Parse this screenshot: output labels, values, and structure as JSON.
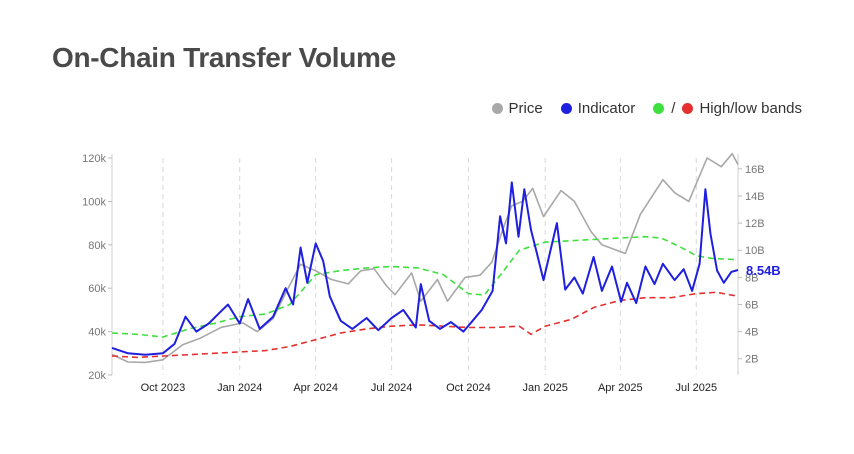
{
  "title": "On-Chain Transfer Volume",
  "legend": {
    "price": "Price",
    "indicator": "Indicator",
    "bands_separator": "/",
    "bands": "High/low bands"
  },
  "colors": {
    "price": "#a8a8a8",
    "indicator": "#1f1fe0",
    "high_band": "#3ee03e",
    "low_band": "#e53030",
    "grid": "#d8d8d8",
    "axis_text": "#777777"
  },
  "chart_data": {
    "type": "line",
    "title": "On-Chain Transfer Volume",
    "x_range": [
      "2023-08-01",
      "2025-08-20"
    ],
    "x_ticks": [
      {
        "date": "2023-10-01",
        "label": "Oct 2023"
      },
      {
        "date": "2024-01-01",
        "label": "Jan 2024"
      },
      {
        "date": "2024-04-01",
        "label": "Apr 2024"
      },
      {
        "date": "2024-07-01",
        "label": "Jul 2024"
      },
      {
        "date": "2024-10-01",
        "label": "Oct 2024"
      },
      {
        "date": "2025-01-01",
        "label": "Jan 2025"
      },
      {
        "date": "2025-04-01",
        "label": "Apr 2025"
      },
      {
        "date": "2025-07-01",
        "label": "Jul 2025"
      }
    ],
    "y_left": {
      "min": 20000,
      "max": 120000,
      "ticks": [
        {
          "value": 20000,
          "label": "20k"
        },
        {
          "value": 40000,
          "label": "40k"
        },
        {
          "value": 60000,
          "label": "60k"
        },
        {
          "value": 80000,
          "label": "80k"
        },
        {
          "value": 100000,
          "label": "100k"
        },
        {
          "value": 120000,
          "label": "120k"
        }
      ]
    },
    "y_right": {
      "min": 0.8,
      "max": 16.8,
      "ticks": [
        {
          "value": 2,
          "label": "2B"
        },
        {
          "value": 4,
          "label": "4B"
        },
        {
          "value": 6,
          "label": "6B"
        },
        {
          "value": 8,
          "label": "8B"
        },
        {
          "value": 10,
          "label": "10B"
        },
        {
          "value": 12,
          "label": "12B"
        },
        {
          "value": 14,
          "label": "14B"
        },
        {
          "value": 16,
          "label": "16B"
        }
      ]
    },
    "current_value_label": "8.54B",
    "grid": {
      "x": true,
      "y": false,
      "style": "dashed"
    },
    "legend_position": "top-right",
    "series": [
      {
        "name": "Price",
        "axis": "left",
        "points": [
          [
            "2023-08-01",
            29500
          ],
          [
            "2023-08-20",
            26000
          ],
          [
            "2023-09-10",
            25800
          ],
          [
            "2023-10-01",
            27000
          ],
          [
            "2023-10-25",
            34000
          ],
          [
            "2023-11-15",
            37000
          ],
          [
            "2023-12-10",
            42000
          ],
          [
            "2024-01-05",
            44000
          ],
          [
            "2024-01-22",
            40000
          ],
          [
            "2024-02-10",
            46000
          ],
          [
            "2024-02-28",
            60000
          ],
          [
            "2024-03-14",
            71000
          ],
          [
            "2024-04-01",
            68000
          ],
          [
            "2024-04-20",
            64000
          ],
          [
            "2024-05-10",
            62000
          ],
          [
            "2024-05-25",
            68000
          ],
          [
            "2024-06-10",
            69000
          ],
          [
            "2024-06-25",
            61000
          ],
          [
            "2024-07-05",
            57000
          ],
          [
            "2024-07-25",
            67000
          ],
          [
            "2024-08-05",
            54000
          ],
          [
            "2024-08-25",
            64000
          ],
          [
            "2024-09-06",
            54000
          ],
          [
            "2024-09-27",
            65000
          ],
          [
            "2024-10-15",
            66000
          ],
          [
            "2024-10-29",
            72000
          ],
          [
            "2024-11-12",
            88000
          ],
          [
            "2024-11-22",
            98000
          ],
          [
            "2024-12-05",
            100000
          ],
          [
            "2024-12-17",
            106000
          ],
          [
            "2024-12-30",
            93000
          ],
          [
            "2025-01-20",
            105000
          ],
          [
            "2025-02-05",
            100000
          ],
          [
            "2025-02-25",
            86000
          ],
          [
            "2025-03-10",
            80000
          ],
          [
            "2025-04-07",
            76000
          ],
          [
            "2025-04-25",
            94000
          ],
          [
            "2025-05-22",
            110000
          ],
          [
            "2025-06-05",
            104000
          ],
          [
            "2025-06-22",
            100000
          ],
          [
            "2025-07-14",
            120000
          ],
          [
            "2025-07-31",
            116000
          ],
          [
            "2025-08-13",
            122000
          ],
          [
            "2025-08-20",
            117000
          ]
        ]
      },
      {
        "name": "Indicator",
        "axis": "right",
        "points": [
          [
            "2023-08-01",
            2.8
          ],
          [
            "2023-08-20",
            2.4
          ],
          [
            "2023-09-10",
            2.3
          ],
          [
            "2023-10-01",
            2.4
          ],
          [
            "2023-10-15",
            3.1
          ],
          [
            "2023-10-28",
            5.1
          ],
          [
            "2023-11-10",
            4.0
          ],
          [
            "2023-11-25",
            4.6
          ],
          [
            "2023-12-08",
            5.4
          ],
          [
            "2023-12-18",
            6.0
          ],
          [
            "2024-01-01",
            4.6
          ],
          [
            "2024-01-11",
            6.4
          ],
          [
            "2024-01-25",
            4.2
          ],
          [
            "2024-02-10",
            5.1
          ],
          [
            "2024-02-25",
            7.2
          ],
          [
            "2024-03-05",
            6.0
          ],
          [
            "2024-03-14",
            10.2
          ],
          [
            "2024-03-22",
            7.6
          ],
          [
            "2024-04-01",
            10.5
          ],
          [
            "2024-04-10",
            9.2
          ],
          [
            "2024-04-18",
            6.6
          ],
          [
            "2024-05-01",
            4.8
          ],
          [
            "2024-05-15",
            4.2
          ],
          [
            "2024-06-01",
            5.0
          ],
          [
            "2024-06-15",
            4.1
          ],
          [
            "2024-07-01",
            5.0
          ],
          [
            "2024-07-15",
            5.6
          ],
          [
            "2024-07-30",
            4.3
          ],
          [
            "2024-08-05",
            7.5
          ],
          [
            "2024-08-15",
            4.8
          ],
          [
            "2024-08-28",
            4.2
          ],
          [
            "2024-09-10",
            4.7
          ],
          [
            "2024-09-25",
            4.0
          ],
          [
            "2024-10-06",
            4.8
          ],
          [
            "2024-10-17",
            5.6
          ],
          [
            "2024-10-30",
            7.0
          ],
          [
            "2024-11-08",
            12.5
          ],
          [
            "2024-11-15",
            10.5
          ],
          [
            "2024-11-22",
            15.0
          ],
          [
            "2024-11-30",
            11.0
          ],
          [
            "2024-12-07",
            14.5
          ],
          [
            "2024-12-15",
            11.5
          ],
          [
            "2024-12-22",
            9.8
          ],
          [
            "2024-12-30",
            7.8
          ],
          [
            "2025-01-15",
            12.0
          ],
          [
            "2025-01-25",
            7.1
          ],
          [
            "2025-02-05",
            8.0
          ],
          [
            "2025-02-15",
            6.8
          ],
          [
            "2025-02-28",
            9.5
          ],
          [
            "2025-03-10",
            7.0
          ],
          [
            "2025-03-22",
            8.8
          ],
          [
            "2025-04-02",
            6.2
          ],
          [
            "2025-04-09",
            7.6
          ],
          [
            "2025-04-20",
            6.1
          ],
          [
            "2025-05-01",
            8.8
          ],
          [
            "2025-05-12",
            7.5
          ],
          [
            "2025-05-22",
            9.0
          ],
          [
            "2025-06-05",
            7.8
          ],
          [
            "2025-06-16",
            8.6
          ],
          [
            "2025-06-26",
            7.0
          ],
          [
            "2025-07-05",
            9.0
          ],
          [
            "2025-07-12",
            14.5
          ],
          [
            "2025-07-18",
            11.2
          ],
          [
            "2025-07-26",
            8.5
          ],
          [
            "2025-08-03",
            7.6
          ],
          [
            "2025-08-12",
            8.4
          ],
          [
            "2025-08-20",
            8.54
          ]
        ]
      },
      {
        "name": "High/low bands",
        "axis": "right",
        "points": [
          [
            "2023-08-01",
            3.9
          ],
          [
            "2023-09-01",
            3.8
          ],
          [
            "2023-10-01",
            3.6
          ],
          [
            "2023-11-01",
            4.2
          ],
          [
            "2023-12-01",
            4.6
          ],
          [
            "2024-01-01",
            5.1
          ],
          [
            "2024-02-01",
            5.3
          ],
          [
            "2024-03-01",
            6.0
          ],
          [
            "2024-04-01",
            8.2
          ],
          [
            "2024-05-01",
            8.5
          ],
          [
            "2024-06-01",
            8.7
          ],
          [
            "2024-07-01",
            8.8
          ],
          [
            "2024-08-01",
            8.7
          ],
          [
            "2024-09-01",
            8.2
          ],
          [
            "2024-10-01",
            6.8
          ],
          [
            "2024-10-20",
            6.7
          ],
          [
            "2024-11-10",
            8.3
          ],
          [
            "2024-12-01",
            10.0
          ],
          [
            "2025-01-01",
            10.6
          ],
          [
            "2025-02-01",
            10.7
          ],
          [
            "2025-03-01",
            10.8
          ],
          [
            "2025-04-01",
            10.9
          ],
          [
            "2025-05-01",
            11.0
          ],
          [
            "2025-05-20",
            10.9
          ],
          [
            "2025-06-10",
            10.3
          ],
          [
            "2025-07-01",
            9.6
          ],
          [
            "2025-07-20",
            9.4
          ],
          [
            "2025-08-20",
            9.3
          ]
        ]
      },
      {
        "name": "High/low bands",
        "axis": "right",
        "points": [
          [
            "2023-08-01",
            2.2
          ],
          [
            "2023-09-01",
            2.1
          ],
          [
            "2023-10-01",
            2.2
          ],
          [
            "2023-11-01",
            2.3
          ],
          [
            "2023-12-01",
            2.4
          ],
          [
            "2024-01-01",
            2.5
          ],
          [
            "2024-02-01",
            2.6
          ],
          [
            "2024-03-01",
            2.9
          ],
          [
            "2024-04-01",
            3.4
          ],
          [
            "2024-05-01",
            3.9
          ],
          [
            "2024-06-01",
            4.2
          ],
          [
            "2024-07-01",
            4.4
          ],
          [
            "2024-08-01",
            4.5
          ],
          [
            "2024-09-01",
            4.4
          ],
          [
            "2024-10-01",
            4.3
          ],
          [
            "2024-11-01",
            4.3
          ],
          [
            "2024-12-01",
            4.4
          ],
          [
            "2024-12-15",
            3.8
          ],
          [
            "2025-01-01",
            4.4
          ],
          [
            "2025-02-01",
            4.9
          ],
          [
            "2025-03-01",
            5.8
          ],
          [
            "2025-04-01",
            6.3
          ],
          [
            "2025-05-01",
            6.5
          ],
          [
            "2025-06-01",
            6.5
          ],
          [
            "2025-07-01",
            6.8
          ],
          [
            "2025-07-25",
            6.9
          ],
          [
            "2025-08-20",
            6.6
          ]
        ]
      }
    ]
  }
}
